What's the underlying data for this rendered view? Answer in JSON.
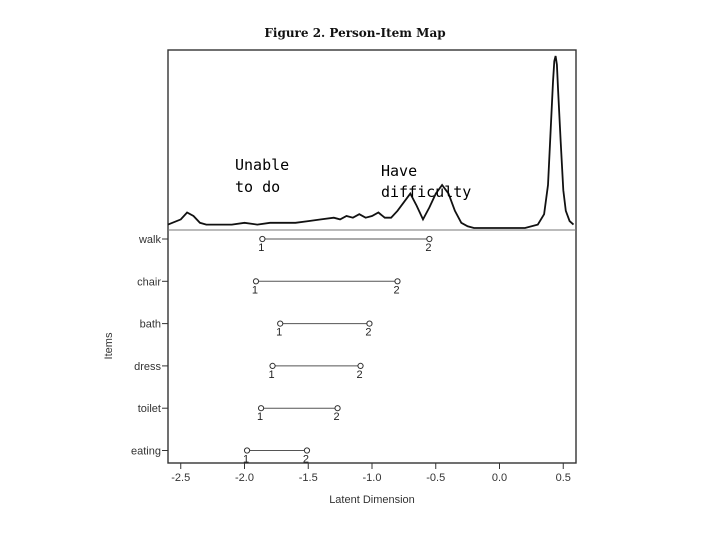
{
  "chart_data": {
    "type": "person-item map",
    "title": "Figure 2.  Person-Item Map",
    "xlabel": "Latent Dimension",
    "ylabel": "Items",
    "xlim": [
      -2.6,
      0.6
    ],
    "x_ticks": [
      "-2.5",
      "-2.0",
      "-1.5",
      "-1.0",
      "-0.5",
      "0.0",
      "0.5"
    ],
    "x_tick_values": [
      -2.5,
      -2.0,
      -1.5,
      -1.0,
      -0.5,
      0.0,
      0.5
    ],
    "annotations": [
      {
        "lines": [
          "Unable",
          "to do"
        ]
      },
      {
        "lines": [
          "Have",
          "difficulty"
        ]
      }
    ],
    "category_labels": [
      "1",
      "2"
    ],
    "items": [
      {
        "name": "walk",
        "threshold_1": -1.86,
        "threshold_2": -0.55
      },
      {
        "name": "chair",
        "threshold_1": -1.91,
        "threshold_2": -0.8
      },
      {
        "name": "bath",
        "threshold_1": -1.72,
        "threshold_2": -1.02
      },
      {
        "name": "dress",
        "threshold_1": -1.78,
        "threshold_2": -1.09
      },
      {
        "name": "toilet",
        "threshold_1": -1.87,
        "threshold_2": -1.27
      },
      {
        "name": "eating",
        "threshold_1": -1.98,
        "threshold_2": -1.51
      }
    ],
    "person_density": {
      "x": [
        -2.6,
        -2.5,
        -2.45,
        -2.4,
        -2.35,
        -2.3,
        -2.2,
        -2.1,
        -2.0,
        -1.9,
        -1.8,
        -1.7,
        -1.6,
        -1.5,
        -1.4,
        -1.3,
        -1.25,
        -1.2,
        -1.15,
        -1.1,
        -1.05,
        -1.0,
        -0.95,
        -0.9,
        -0.85,
        -0.8,
        -0.75,
        -0.7,
        -0.65,
        -0.6,
        -0.55,
        -0.5,
        -0.45,
        -0.4,
        -0.35,
        -0.3,
        -0.25,
        -0.2,
        -0.1,
        0.0,
        0.1,
        0.2,
        0.3,
        0.35,
        0.38,
        0.4,
        0.42,
        0.43,
        0.44,
        0.45,
        0.46,
        0.48,
        0.5,
        0.52,
        0.55,
        0.58
      ],
      "y": [
        0.02,
        0.05,
        0.09,
        0.07,
        0.03,
        0.02,
        0.02,
        0.02,
        0.03,
        0.02,
        0.03,
        0.03,
        0.03,
        0.04,
        0.05,
        0.06,
        0.05,
        0.07,
        0.06,
        0.08,
        0.06,
        0.07,
        0.09,
        0.06,
        0.06,
        0.1,
        0.15,
        0.2,
        0.13,
        0.05,
        0.12,
        0.2,
        0.25,
        0.2,
        0.1,
        0.03,
        0.01,
        0.0,
        0.0,
        0.0,
        0.0,
        0.0,
        0.02,
        0.08,
        0.25,
        0.55,
        0.85,
        0.97,
        1.0,
        0.95,
        0.8,
        0.5,
        0.22,
        0.1,
        0.04,
        0.02
      ]
    }
  }
}
